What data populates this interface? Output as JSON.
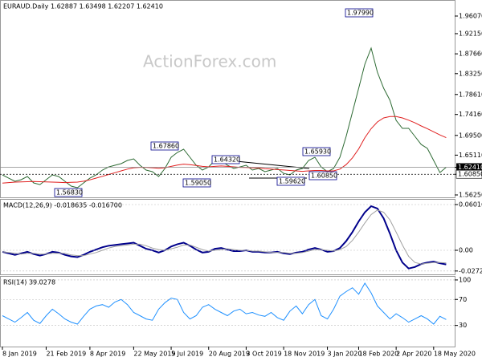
{
  "chart_data": [
    {
      "type": "line",
      "title": "EURAUD.Daily 1.62887 1.63498 1.62207 1.62410",
      "watermark": "ActionForex.com",
      "series": [
        {
          "color": "#2e6b34",
          "values": [
            1.6071,
            1.5999,
            1.5928,
            1.5964,
            1.6035,
            1.5892,
            1.5856,
            1.5964,
            1.6071,
            1.6035,
            1.5928,
            1.5821,
            1.5785,
            1.5892,
            1.5999,
            1.6071,
            1.6178,
            1.6249,
            1.6285,
            1.6321,
            1.6392,
            1.6428,
            1.6285,
            1.6178,
            1.6142,
            1.6035,
            1.6214,
            1.6464,
            1.6571,
            1.6642,
            1.6464,
            1.6285,
            1.6178,
            1.6249,
            1.6392,
            1.6392,
            1.6285,
            1.6214,
            1.6249,
            1.6285,
            1.6178,
            1.6214,
            1.6142,
            1.6178,
            1.6214,
            1.6106,
            1.6071,
            1.6178,
            1.6214,
            1.6392,
            1.6464,
            1.6249,
            1.6142,
            1.6214,
            1.6464,
            1.6928,
            1.7464,
            1.8,
            1.8535,
            1.8893,
            1.8357,
            1.8,
            1.7732,
            1.7285,
            1.7107,
            1.7107,
            1.6928,
            1.6749,
            1.666,
            1.6392,
            1.6124,
            1.6241
          ]
        },
        {
          "color": "#e02020",
          "values": [
            1.589,
            1.59,
            1.591,
            1.5915,
            1.592,
            1.5925,
            1.592,
            1.5915,
            1.591,
            1.5905,
            1.59,
            1.5905,
            1.591,
            1.593,
            1.596,
            1.6,
            1.604,
            1.608,
            1.612,
            1.616,
            1.62,
            1.623,
            1.624,
            1.624,
            1.623,
            1.622,
            1.623,
            1.626,
            1.629,
            1.631,
            1.63,
            1.628,
            1.626,
            1.625,
            1.626,
            1.627,
            1.626,
            1.625,
            1.624,
            1.6235,
            1.623,
            1.6225,
            1.621,
            1.62,
            1.619,
            1.618,
            1.617,
            1.616,
            1.615,
            1.616,
            1.617,
            1.617,
            1.616,
            1.616,
            1.62,
            1.63,
            1.645,
            1.665,
            1.69,
            1.71,
            1.725,
            1.734,
            1.737,
            1.737,
            1.734,
            1.729,
            1.723,
            1.716,
            1.71,
            1.703,
            1.696,
            1.69
          ]
        }
      ],
      "annotations": [
        "1.97990",
        "1.67860",
        "1.64320",
        "1.65930",
        "1.56830",
        "1.59050",
        "1.59620",
        "1.60850"
      ],
      "ylim": [
        1.55714,
        1.99642
      ],
      "yticks": [
        {
          "value": 1.9607,
          "label": "1.96070"
        },
        {
          "value": 1.9215,
          "label": "1.92150"
        },
        {
          "value": 1.8766,
          "label": "1.87660"
        },
        {
          "value": 1.8325,
          "label": "1.83250"
        },
        {
          "value": 1.7861,
          "label": "1.78610"
        },
        {
          "value": 1.7416,
          "label": "1.74160"
        },
        {
          "value": 1.695,
          "label": "1.69500"
        },
        {
          "value": 1.6511,
          "label": "1.65110"
        },
        {
          "value": 1.6241,
          "label": "1.62410"
        },
        {
          "value": 1.6085,
          "label": "1.60850"
        },
        {
          "value": 1.5625,
          "label": "1.56250"
        }
      ]
    },
    {
      "type": "line",
      "title": "MACD(12,26,9) -0.018635 -0.016700",
      "series": [
        {
          "color": "#00008b",
          "values": [
            -0.002,
            -0.004,
            -0.006,
            -0.004,
            -0.002,
            -0.005,
            -0.007,
            -0.005,
            -0.002,
            -0.003,
            -0.006,
            -0.008,
            -0.009,
            -0.006,
            -0.002,
            0.001,
            0.004,
            0.006,
            0.007,
            0.008,
            0.009,
            0.01,
            0.006,
            0.002,
            0.0,
            -0.003,
            0.0,
            0.005,
            0.008,
            0.01,
            0.006,
            0.001,
            -0.003,
            -0.002,
            0.002,
            0.003,
            0.001,
            -0.001,
            -0.001,
            0.0,
            -0.002,
            -0.002,
            -0.003,
            -0.003,
            -0.002,
            -0.004,
            -0.005,
            -0.003,
            -0.002,
            0.001,
            0.003,
            0.001,
            -0.002,
            -0.001,
            0.003,
            0.012,
            0.024,
            0.038,
            0.05,
            0.058,
            0.055,
            0.042,
            0.022,
            0.0,
            -0.016,
            -0.024,
            -0.022,
            -0.018,
            -0.016,
            -0.015,
            -0.017,
            -0.0186
          ]
        },
        {
          "color": "#a0a0a0",
          "values": [
            -0.002,
            -0.003,
            -0.004,
            -0.005,
            -0.004,
            -0.004,
            -0.005,
            -0.005,
            -0.004,
            -0.004,
            -0.004,
            -0.006,
            -0.007,
            -0.007,
            -0.005,
            -0.003,
            0.0,
            0.003,
            0.005,
            0.006,
            0.007,
            0.008,
            0.008,
            0.006,
            0.003,
            0.001,
            0.0,
            0.002,
            0.004,
            0.007,
            0.007,
            0.004,
            0.001,
            -0.001,
            0.0,
            0.001,
            0.002,
            0.001,
            0.0,
            0.0,
            -0.001,
            -0.001,
            -0.002,
            -0.003,
            -0.003,
            -0.003,
            -0.004,
            -0.004,
            -0.003,
            -0.001,
            0.001,
            0.001,
            0.0,
            -0.001,
            0.001,
            0.005,
            0.013,
            0.024,
            0.036,
            0.047,
            0.053,
            0.05,
            0.04,
            0.024,
            0.007,
            -0.008,
            -0.016,
            -0.018,
            -0.017,
            -0.016,
            -0.016,
            -0.0167
          ]
        }
      ],
      "ylim": [
        -0.03166,
        0.06755
      ],
      "yticks": [
        0.060165,
        {
          "value": 0,
          "label": "0.00"
        },
        -0.02725
      ]
    },
    {
      "type": "line",
      "title": "RSI(14) 39.0278",
      "categories": [
        "8 Jan 2019",
        null,
        null,
        null,
        null,
        null,
        null,
        "21 Feb 2019",
        null,
        null,
        null,
        null,
        null,
        null,
        "8 Apr 2019",
        null,
        null,
        null,
        null,
        null,
        null,
        "22 May 2019",
        null,
        null,
        null,
        null,
        null,
        "5 Jul 2019",
        null,
        null,
        null,
        null,
        null,
        "20 Aug 2019",
        null,
        null,
        null,
        null,
        null,
        "3 Oct 2019",
        null,
        null,
        null,
        null,
        null,
        "18 Nov 2019",
        null,
        null,
        null,
        null,
        null,
        null,
        "3 Jan 2020",
        null,
        null,
        null,
        null,
        "18 Feb 2020",
        null,
        null,
        null,
        null,
        null,
        "2 Apr 2020",
        null,
        null,
        null,
        null,
        null,
        "18 May 2020",
        null,
        null
      ],
      "series": [
        {
          "color": "#1e90ff",
          "values": [
            45,
            40,
            35,
            42,
            50,
            38,
            33,
            45,
            55,
            48,
            40,
            35,
            32,
            44,
            55,
            60,
            62,
            58,
            66,
            70,
            62,
            50,
            45,
            40,
            38,
            55,
            65,
            72,
            70,
            50,
            40,
            45,
            58,
            62,
            55,
            50,
            45,
            52,
            55,
            48,
            50,
            46,
            44,
            50,
            42,
            38,
            52,
            60,
            48,
            62,
            70,
            45,
            40,
            55,
            75,
            82,
            88,
            78,
            95,
            80,
            60,
            50,
            40,
            48,
            42,
            35,
            40,
            45,
            40,
            32,
            44,
            39.0278
          ]
        }
      ],
      "ylim": [
        -2.5,
        106.1
      ],
      "yticks": [
        100,
        70,
        30
      ]
    }
  ]
}
